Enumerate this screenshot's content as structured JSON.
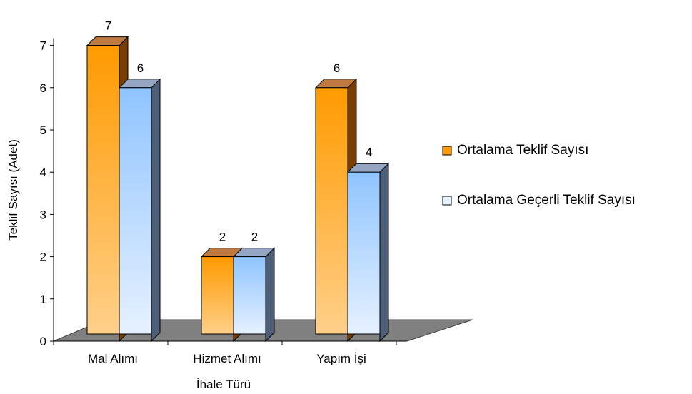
{
  "chart_data": {
    "type": "bar",
    "xlabel": "İhale Türü",
    "ylabel": "Teklif Sayısı (Adet)",
    "categories": [
      "Mal Alımı",
      "Hizmet Alımı",
      "Yapım İşi"
    ],
    "series": [
      {
        "name": "Ortalama Teklif Sayısı",
        "values": [
          7,
          2,
          6
        ]
      },
      {
        "name": "Ortalama Geçerli Teklif Sayısı",
        "values": [
          6,
          2,
          4
        ]
      }
    ],
    "ylim": [
      0,
      7
    ],
    "yticks": [
      "0",
      "1",
      "2",
      "3",
      "4",
      "5",
      "6",
      "7"
    ],
    "data_labels": [
      [
        "7",
        "2",
        "6"
      ],
      [
        "6",
        "2",
        "4"
      ]
    ],
    "legend_position": "right",
    "grid": false,
    "style": "3d-column",
    "colors": {
      "series1_top": "#ff9a00",
      "series1_bottom": "#ffd08a",
      "series1_side": "#7a3d00",
      "series1_cap": "#c07a40",
      "series2_top": "#8fc4ff",
      "series2_bottom": "#e6f1ff",
      "series2_side": "#4d5e78",
      "series2_cap": "#94a6c2",
      "floor": "#808080"
    }
  }
}
